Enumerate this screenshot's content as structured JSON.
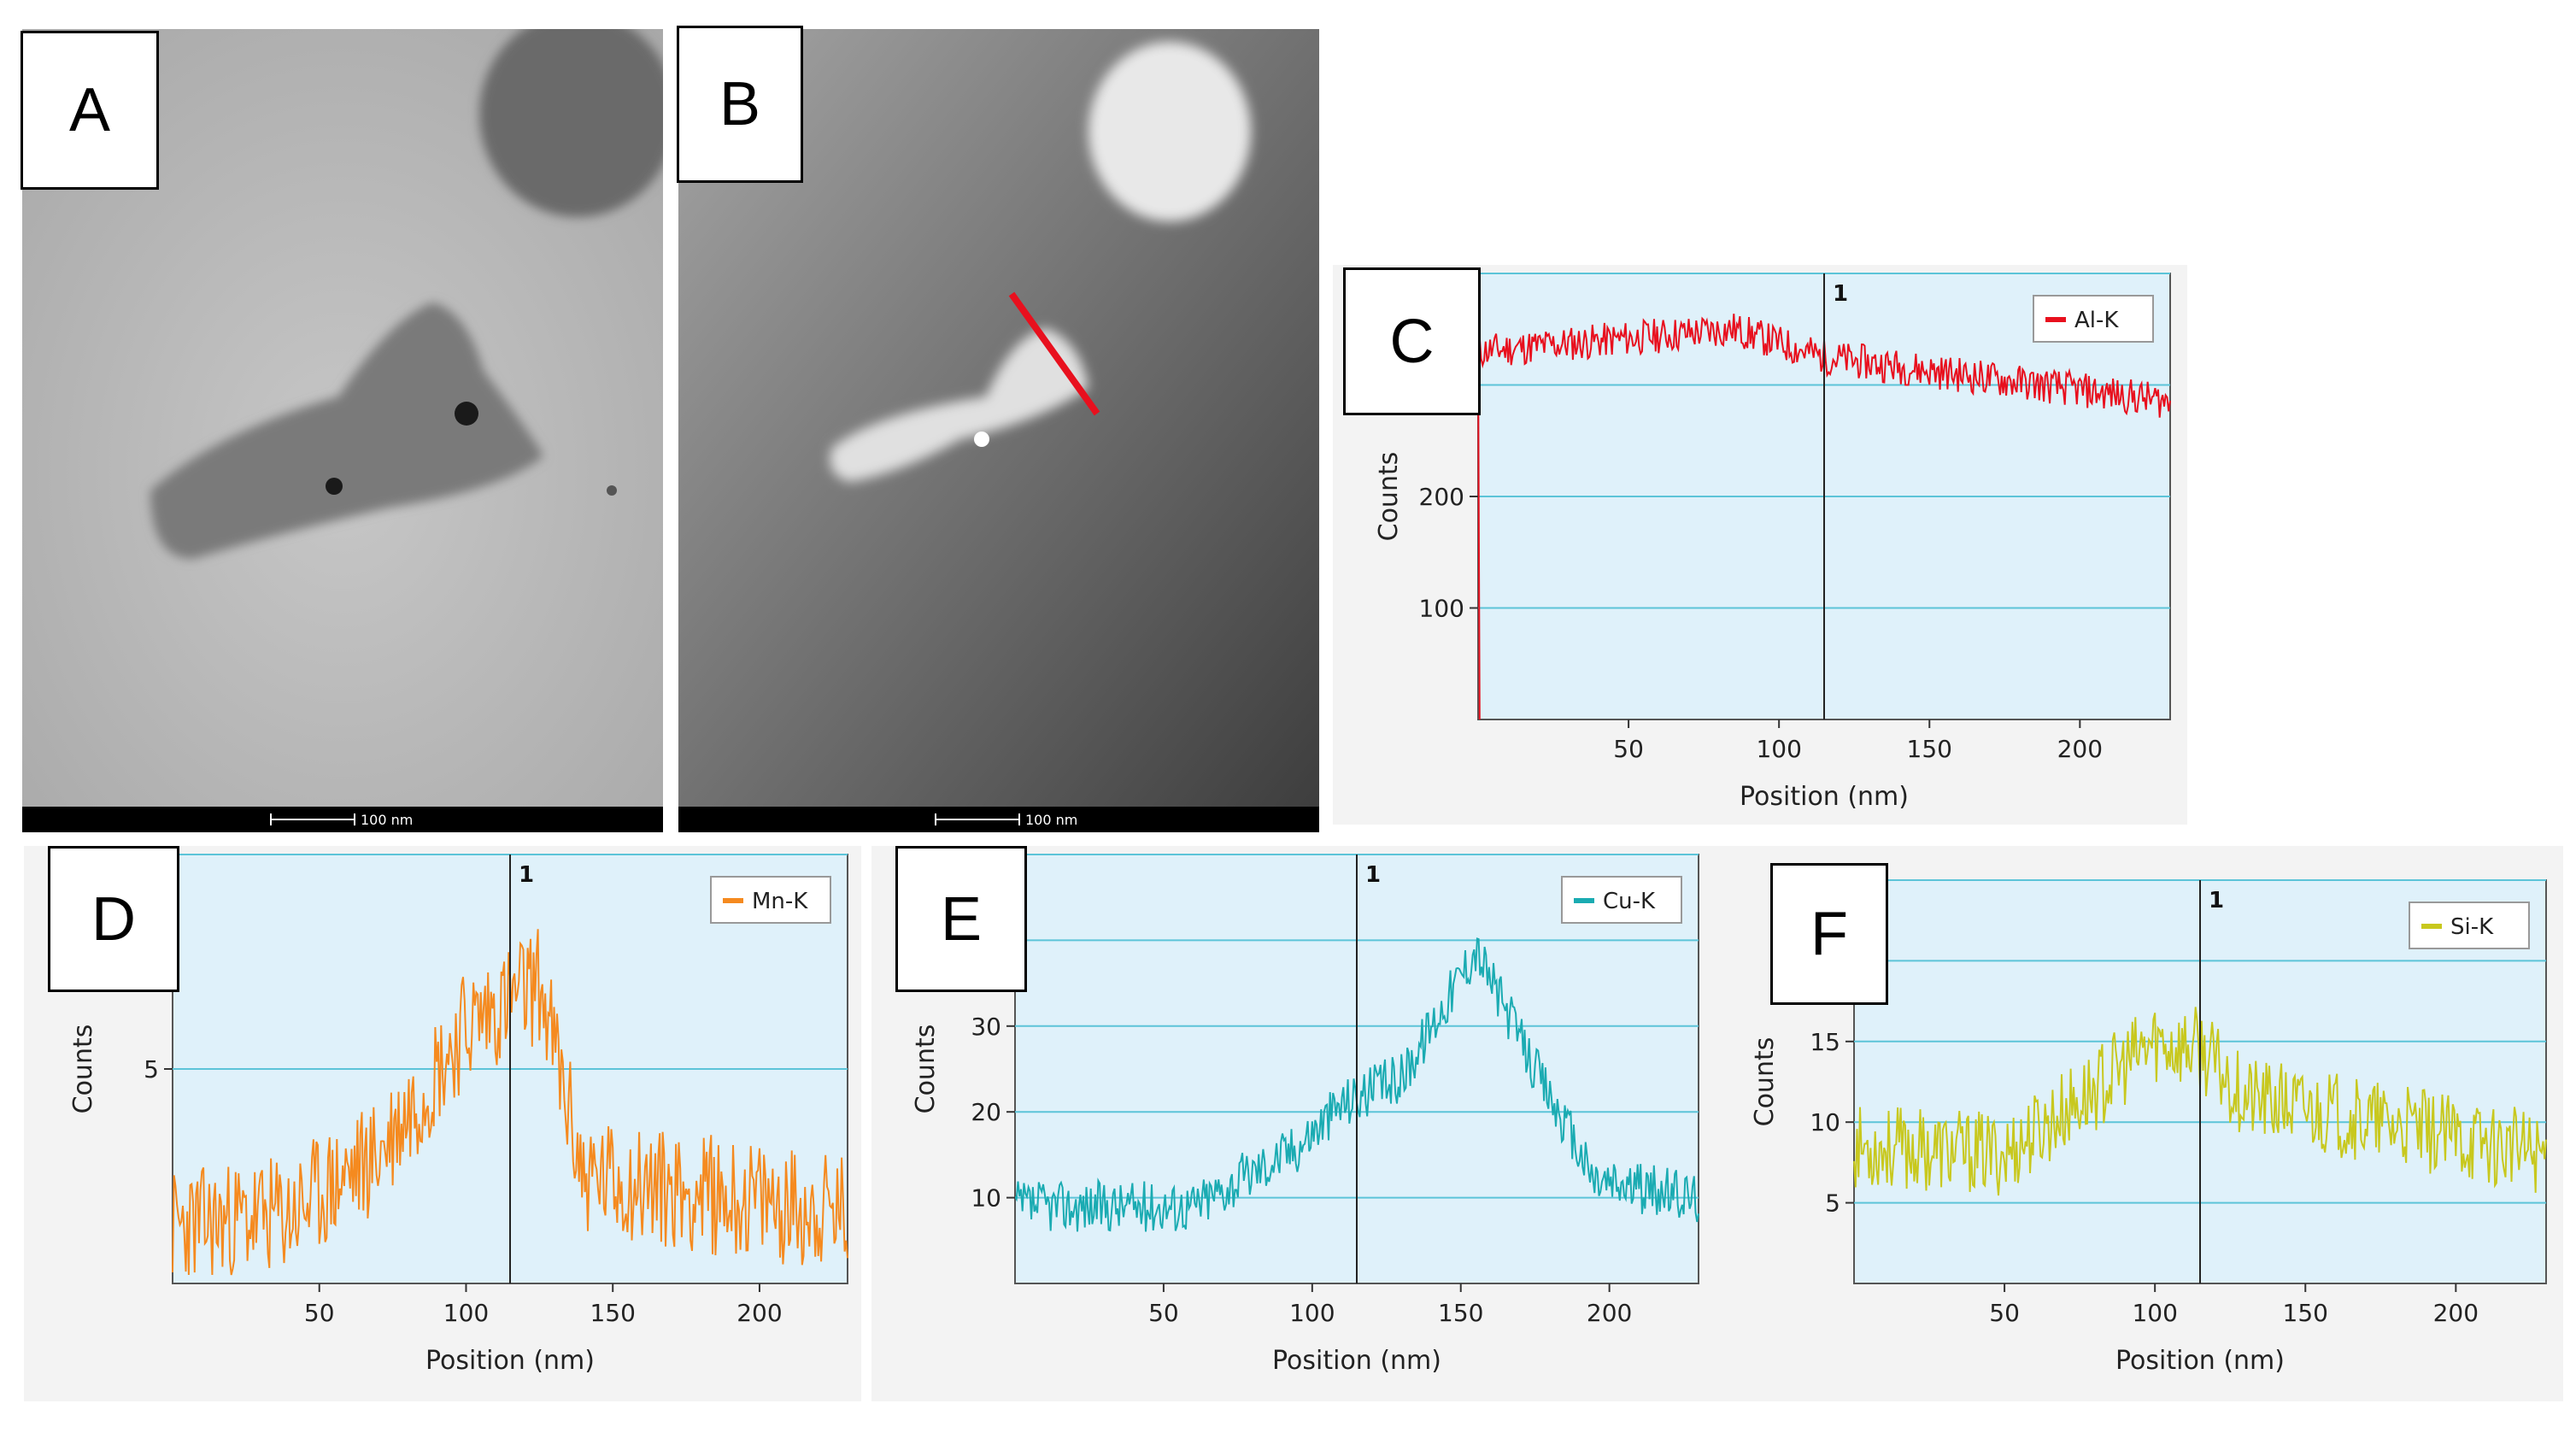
{
  "micrographs": [
    {
      "label": "A",
      "scale": "100 nm",
      "mode": "bright-field"
    },
    {
      "label": "B",
      "scale": "100 nm",
      "mode": "dark-field"
    }
  ],
  "colors": {
    "gridline": "#5cc4d8",
    "plot_bg": "#dff1fa",
    "marker": "#e8101e"
  },
  "chart_data": [
    {
      "panel": "C",
      "type": "line",
      "series_name": "Al-K",
      "color": "#e8101e",
      "xlabel": "Position (nm)",
      "ylabel": "Counts",
      "x_ticks": [
        50,
        100,
        150,
        200
      ],
      "y_ticks": [
        100,
        200
      ],
      "xlim": [
        0,
        230
      ],
      "ylim": [
        0,
        400
      ],
      "gridlines": [
        100,
        200,
        300,
        400
      ],
      "cursor_x": 115,
      "cursor_label": "1",
      "profile": {
        "base": [
          [
            0,
            330
          ],
          [
            85,
            350
          ],
          [
            115,
            325
          ],
          [
            230,
            285
          ]
        ],
        "noise": 16,
        "seed": 11,
        "edge_drop": true
      }
    },
    {
      "panel": "D",
      "type": "line",
      "series_name": "Mn-K",
      "color": "#f58a1f",
      "xlabel": "Position (nm)",
      "ylabel": "Counts",
      "x_ticks": [
        50,
        100,
        150,
        200
      ],
      "y_ticks": [
        5
      ],
      "xlim": [
        0,
        230
      ],
      "ylim": [
        0,
        10
      ],
      "gridlines": [
        5,
        10
      ],
      "cursor_x": 115,
      "cursor_label": "1",
      "profile": {
        "base": [
          [
            0,
            1.3
          ],
          [
            40,
            1.6
          ],
          [
            70,
            3
          ],
          [
            100,
            6
          ],
          [
            125,
            7
          ],
          [
            140,
            2.5
          ],
          [
            230,
            1.6
          ]
        ],
        "noise": 1.4,
        "seed": 23
      }
    },
    {
      "panel": "E",
      "type": "line",
      "series_name": "Cu-K",
      "color": "#1aabb2",
      "xlabel": "Position (nm)",
      "ylabel": "Counts",
      "x_ticks": [
        50,
        100,
        150,
        200
      ],
      "y_ticks": [
        10,
        20,
        30
      ],
      "xlim": [
        0,
        230
      ],
      "ylim": [
        0,
        50
      ],
      "gridlines": [
        10,
        20,
        30,
        40,
        50
      ],
      "cursor_x": 115,
      "cursor_label": "1",
      "profile": {
        "base": [
          [
            0,
            9
          ],
          [
            60,
            9
          ],
          [
            95,
            16
          ],
          [
            110,
            21
          ],
          [
            130,
            24
          ],
          [
            155,
            39
          ],
          [
            175,
            25
          ],
          [
            195,
            12
          ],
          [
            230,
            10
          ]
        ],
        "noise": 3,
        "seed": 37
      }
    },
    {
      "panel": "F",
      "type": "line",
      "series_name": "Si-K",
      "color": "#c8c81e",
      "xlabel": "Position (nm)",
      "ylabel": "Counts",
      "x_ticks": [
        50,
        100,
        150,
        200
      ],
      "y_ticks": [
        5,
        10,
        15
      ],
      "xlim": [
        0,
        230
      ],
      "ylim": [
        0,
        25
      ],
      "gridlines": [
        5,
        10,
        15,
        20,
        25
      ],
      "cursor_x": 115,
      "cursor_label": "1",
      "profile": {
        "base": [
          [
            0,
            8.5
          ],
          [
            50,
            8
          ],
          [
            80,
            12
          ],
          [
            100,
            15
          ],
          [
            115,
            14.5
          ],
          [
            130,
            11.5
          ],
          [
            230,
            8
          ]
        ],
        "noise": 2.6,
        "seed": 53
      }
    }
  ]
}
